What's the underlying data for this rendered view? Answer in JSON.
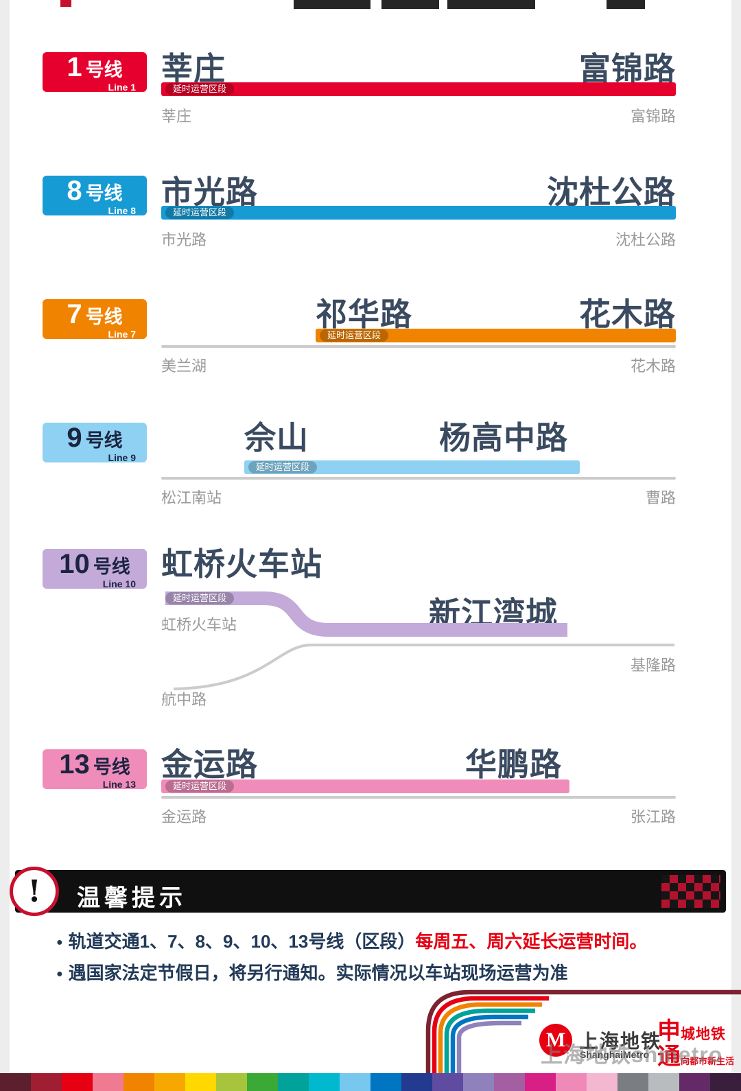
{
  "lines": [
    {
      "badge": {
        "number": "1",
        "suffix": "号线",
        "sub": "Line 1",
        "fg": "#ffffff"
      },
      "color": "#e6002d",
      "tag": "延时运营区段",
      "title_left": "莘庄",
      "title_right": "富锦路",
      "label_left": "莘庄",
      "label_right": "富锦路"
    },
    {
      "badge": {
        "number": "8",
        "suffix": "号线",
        "sub": "Line 8",
        "fg": "#ffffff"
      },
      "color": "#169bd5",
      "tag": "延时运营区段",
      "title_left": "市光路",
      "title_right": "沈杜公路",
      "label_left": "市光路",
      "label_right": "沈杜公路"
    },
    {
      "badge": {
        "number": "7",
        "suffix": "号线",
        "sub": "Line 7",
        "fg": "#ffffff"
      },
      "color": "#f08300",
      "tag": "延时运营区段",
      "title_left": "祁华路",
      "title_right": "花木路",
      "label_left": "美兰湖",
      "label_right": "花木路"
    },
    {
      "badge": {
        "number": "9",
        "suffix": "号线",
        "sub": "Line 9",
        "fg": "#1b2440"
      },
      "color": "#8ed1f2",
      "tag": "延时运营区段",
      "title_left": "佘山",
      "title_right": "杨高中路",
      "label_left": "松江南站",
      "label_right": "曹路"
    },
    {
      "badge": {
        "number": "10",
        "suffix": "号线",
        "sub": "Line 10",
        "fg": "#1b2440"
      },
      "color": "#c3aad9",
      "tag": "延时运营区段",
      "title_left": "虹桥火车站",
      "title_right": "新江湾城",
      "label_left": "虹桥火车站",
      "label_right": "基隆路",
      "label_branch": "航中路"
    },
    {
      "badge": {
        "number": "13",
        "suffix": "号线",
        "sub": "Line 13",
        "fg": "#1b2440"
      },
      "color": "#f08cba",
      "tag": "延时运营区段",
      "title_left": "金运路",
      "title_right": "华鹏路",
      "label_left": "金运路",
      "label_right": "张江路"
    }
  ],
  "notice": {
    "alert": "!",
    "title": "温馨提示",
    "bullet": "●",
    "b1_normal": "轨道交通1、7、8、9、10、13号线（区段）",
    "b1_red": "每周五、周六延长运营时间。",
    "b2": "遇国家法定节假日，将另行通知。实际情况以车站现场运营为准",
    "red": "#e60012"
  },
  "footer": {
    "logo_glyph": "M",
    "logo_red": "#e60012",
    "cn": "上海地铁",
    "en": "ShanghaiMetro",
    "s1_big": "申",
    "s1_rest": "城地铁",
    "s2_big": "通",
    "s2_rest": "向都市新生活",
    "slogan_color": "#e60012",
    "watermark": "上海地铁shmetro",
    "arc_colors": [
      "#7c2230",
      "#e60012",
      "#f08300",
      "#00a29a",
      "#0075c2",
      "#8f82bc"
    ]
  },
  "bottom_strip_colors": [
    "#5b1f2e",
    "#a01e32",
    "#e60012",
    "#ef7a92",
    "#f08300",
    "#f6a800",
    "#ffd800",
    "#a6c43c",
    "#3aa935",
    "#00a29a",
    "#00b9ce",
    "#78c7ef",
    "#0075c2",
    "#223a8f",
    "#5f4ba0",
    "#8f82bc",
    "#a45fa2",
    "#d71f85",
    "#ef8ab8",
    "#f4b7d0",
    "#7a7d82",
    "#b9bcbf",
    "#642a68",
    "#3a1f3c"
  ]
}
